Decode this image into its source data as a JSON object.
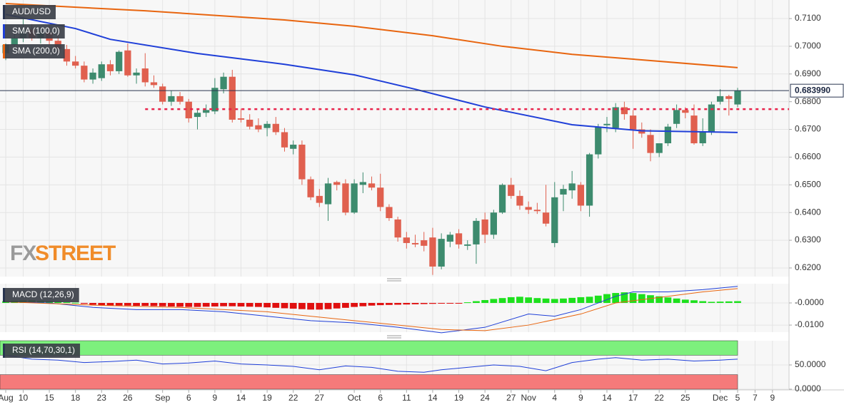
{
  "watermark": [
    "FX",
    "STREET"
  ],
  "chart_data": [
    {
      "type": "candlestick",
      "name": "AUD/USD",
      "up_color": "#3d8b6e",
      "down_color": "#e0604f",
      "ohlc": [
        [
          0.6975,
          0.701,
          0.695,
          0.7005
        ],
        [
          0.7005,
          0.7045,
          0.6985,
          0.703
        ],
        [
          0.703,
          0.71,
          0.7015,
          0.706
        ],
        [
          0.706,
          0.708,
          0.702,
          0.703
        ],
        [
          0.703,
          0.707,
          0.701,
          0.705
        ],
        [
          0.705,
          0.7075,
          0.7005,
          0.702
        ],
        [
          0.702,
          0.704,
          0.6975,
          0.699
        ],
        [
          0.699,
          0.7005,
          0.693,
          0.6945
        ],
        [
          0.6945,
          0.6965,
          0.692,
          0.693
        ],
        [
          0.693,
          0.6945,
          0.687,
          0.688
        ],
        [
          0.688,
          0.692,
          0.6865,
          0.6905
        ],
        [
          0.6885,
          0.6945,
          0.6875,
          0.6935
        ],
        [
          0.6935,
          0.695,
          0.6895,
          0.691
        ],
        [
          0.691,
          0.6985,
          0.69,
          0.698
        ],
        [
          0.6985,
          0.701,
          0.689,
          0.6895
        ],
        [
          0.6895,
          0.692,
          0.6865,
          0.6905
        ],
        [
          0.692,
          0.6975,
          0.6855,
          0.687
        ],
        [
          0.687,
          0.6895,
          0.685,
          0.686
        ],
        [
          0.6855,
          0.6865,
          0.679,
          0.68
        ],
        [
          0.68,
          0.684,
          0.6785,
          0.682
        ],
        [
          0.682,
          0.6835,
          0.679,
          0.68
        ],
        [
          0.68,
          0.681,
          0.6725,
          0.674
        ],
        [
          0.6745,
          0.6775,
          0.67,
          0.676
        ],
        [
          0.676,
          0.679,
          0.6745,
          0.677
        ],
        [
          0.6765,
          0.6885,
          0.6755,
          0.685
        ],
        [
          0.6845,
          0.6905,
          0.683,
          0.689
        ],
        [
          0.689,
          0.6915,
          0.6725,
          0.6735
        ],
        [
          0.674,
          0.6775,
          0.6725,
          0.6735
        ],
        [
          0.6735,
          0.6755,
          0.67,
          0.671
        ],
        [
          0.6715,
          0.674,
          0.669,
          0.67
        ],
        [
          0.6705,
          0.673,
          0.6675,
          0.672
        ],
        [
          0.672,
          0.6745,
          0.668,
          0.669
        ],
        [
          0.669,
          0.6705,
          0.662,
          0.6635
        ],
        [
          0.663,
          0.666,
          0.661,
          0.6645
        ],
        [
          0.6645,
          0.666,
          0.65,
          0.652
        ],
        [
          0.652,
          0.653,
          0.6445,
          0.6455
        ],
        [
          0.646,
          0.6485,
          0.642,
          0.6435
        ],
        [
          0.643,
          0.6525,
          0.637,
          0.6505
        ],
        [
          0.651,
          0.6515,
          0.648,
          0.65
        ],
        [
          0.6505,
          0.652,
          0.639,
          0.64
        ],
        [
          0.64,
          0.652,
          0.6395,
          0.6505
        ],
        [
          0.65,
          0.6545,
          0.647,
          0.651
        ],
        [
          0.6505,
          0.653,
          0.648,
          0.649
        ],
        [
          0.649,
          0.654,
          0.6405,
          0.642
        ],
        [
          0.642,
          0.643,
          0.637,
          0.638
        ],
        [
          0.6375,
          0.6385,
          0.6295,
          0.631
        ],
        [
          0.631,
          0.633,
          0.627,
          0.629
        ],
        [
          0.629,
          0.632,
          0.6275,
          0.6285
        ],
        [
          0.63,
          0.633,
          0.626,
          0.628
        ],
        [
          0.631,
          0.6345,
          0.6175,
          0.6205
        ],
        [
          0.6205,
          0.6325,
          0.6195,
          0.6305
        ],
        [
          0.6295,
          0.633,
          0.6275,
          0.632
        ],
        [
          0.6325,
          0.634,
          0.627,
          0.6285
        ],
        [
          0.628,
          0.63,
          0.6265,
          0.6285
        ],
        [
          0.6285,
          0.638,
          0.6215,
          0.637
        ],
        [
          0.6375,
          0.64,
          0.629,
          0.632
        ],
        [
          0.632,
          0.641,
          0.6305,
          0.64
        ],
        [
          0.64,
          0.6505,
          0.6395,
          0.65
        ],
        [
          0.65,
          0.6525,
          0.645,
          0.646
        ],
        [
          0.646,
          0.648,
          0.641,
          0.6425
        ],
        [
          0.642,
          0.644,
          0.6395,
          0.641
        ],
        [
          0.641,
          0.6435,
          0.6395,
          0.6405
        ],
        [
          0.64,
          0.65,
          0.635,
          0.636
        ],
        [
          0.629,
          0.651,
          0.6275,
          0.6455
        ],
        [
          0.6465,
          0.65,
          0.6405,
          0.6485
        ],
        [
          0.648,
          0.655,
          0.645,
          0.6505
        ],
        [
          0.65,
          0.651,
          0.6405,
          0.6425
        ],
        [
          0.6425,
          0.6615,
          0.6385,
          0.661
        ],
        [
          0.661,
          0.672,
          0.6595,
          0.671
        ],
        [
          0.6715,
          0.6745,
          0.669,
          0.672
        ],
        [
          0.6705,
          0.6795,
          0.669,
          0.678
        ],
        [
          0.678,
          0.68,
          0.6735,
          0.6755
        ],
        [
          0.675,
          0.677,
          0.663,
          0.67
        ],
        [
          0.67,
          0.6725,
          0.667,
          0.6685
        ],
        [
          0.668,
          0.67,
          0.6585,
          0.6615
        ],
        [
          0.6615,
          0.665,
          0.66,
          0.665
        ],
        [
          0.665,
          0.672,
          0.664,
          0.671
        ],
        [
          0.672,
          0.679,
          0.6705,
          0.677
        ],
        [
          0.677,
          0.678,
          0.674,
          0.676
        ],
        [
          0.675,
          0.679,
          0.6645,
          0.665
        ],
        [
          0.665,
          0.674,
          0.664,
          0.669
        ],
        [
          0.669,
          0.68,
          0.668,
          0.679
        ],
        [
          0.68,
          0.6845,
          0.679,
          0.682
        ],
        [
          0.682,
          0.6825,
          0.675,
          0.681
        ],
        [
          0.679,
          0.685,
          0.678,
          0.684
        ]
      ],
      "series": [
        {
          "name": "SMA (100,0)",
          "color": "#1f3fd8",
          "x": [
            0,
            8,
            12,
            22,
            32,
            40,
            47,
            55,
            65,
            73,
            84
          ],
          "values": [
            0.7115,
            0.7064,
            0.7025,
            0.6974,
            0.6935,
            0.6897,
            0.6845,
            0.6781,
            0.6717,
            0.6695,
            0.6689
          ]
        },
        {
          "name": "SMA (200,0)",
          "color": "#e8650f",
          "x": [
            0,
            16,
            32,
            40,
            49,
            57,
            65,
            73,
            84
          ],
          "values": [
            0.7154,
            0.7128,
            0.7095,
            0.7072,
            0.7038,
            0.7,
            0.6971,
            0.6951,
            0.6923
          ]
        }
      ],
      "last_price": {
        "value": 0.68399,
        "label": "0.683990"
      },
      "level": {
        "value": 0.6773,
        "from": 16,
        "color": "#e8224a"
      },
      "xlim": [
        -0.66,
        89.9
      ],
      "ylim": [
        0.6169,
        0.7167
      ],
      "xticks": [
        {
          "value": 0,
          "label": "Aug"
        },
        {
          "value": 2,
          "label": "10"
        },
        {
          "value": 5,
          "label": "15"
        },
        {
          "value": 8,
          "label": "18"
        },
        {
          "value": 11,
          "label": "23"
        },
        {
          "value": 14,
          "label": "26"
        },
        {
          "value": 18,
          "label": "Sep"
        },
        {
          "value": 21,
          "label": "6"
        },
        {
          "value": 24,
          "label": "9"
        },
        {
          "value": 27,
          "label": "14"
        },
        {
          "value": 30,
          "label": "19"
        },
        {
          "value": 33,
          "label": "22"
        },
        {
          "value": 36,
          "label": "27"
        },
        {
          "value": 40,
          "label": "Oct"
        },
        {
          "value": 43,
          "label": "6"
        },
        {
          "value": 46,
          "label": "11"
        },
        {
          "value": 49,
          "label": "14"
        },
        {
          "value": 52,
          "label": "19"
        },
        {
          "value": 55,
          "label": "24"
        },
        {
          "value": 58,
          "label": "27"
        },
        {
          "value": 60,
          "label": "Nov"
        },
        {
          "value": 63,
          "label": "4"
        },
        {
          "value": 66,
          "label": "9"
        },
        {
          "value": 69,
          "label": "14"
        },
        {
          "value": 72,
          "label": "17"
        },
        {
          "value": 75,
          "label": "22"
        },
        {
          "value": 78,
          "label": "25"
        },
        {
          "value": 82,
          "label": "Dec"
        },
        {
          "value": 84,
          "label": "5"
        },
        {
          "value": 86,
          "label": "7"
        },
        {
          "value": 88,
          "label": "9"
        }
      ],
      "yticks": [
        {
          "value": 0.71,
          "label": "0.7100"
        },
        {
          "value": 0.7,
          "label": "0.7000"
        },
        {
          "value": 0.69,
          "label": "0.6900"
        },
        {
          "value": 0.68,
          "label": "0.6800"
        },
        {
          "value": 0.67,
          "label": "0.6700"
        },
        {
          "value": 0.66,
          "label": "0.6600"
        },
        {
          "value": 0.65,
          "label": "0.6500"
        },
        {
          "value": 0.64,
          "label": "0.6400"
        },
        {
          "value": 0.63,
          "label": "0.6300"
        },
        {
          "value": 0.62,
          "label": "0.6200"
        }
      ],
      "grid": true
    },
    {
      "type": "macd",
      "name": "MACD (12,26,9)",
      "up_color": "#1de01d",
      "down_color": "#e01010",
      "histogram": [
        0.0008,
        0.001,
        0.0012,
        0.0012,
        0.001,
        0.0008,
        0.0006,
        0.0003,
        0.0001,
        -0.0004,
        -0.0008,
        -0.001,
        -0.0012,
        -0.0012,
        -0.0012,
        -0.0013,
        -0.0013,
        -0.0014,
        -0.0015,
        -0.0016,
        -0.0017,
        -0.0018,
        -0.0018,
        -0.0017,
        -0.0016,
        -0.0015,
        -0.0015,
        -0.0016,
        -0.0017,
        -0.0018,
        -0.002,
        -0.0022,
        -0.0024,
        -0.0026,
        -0.0028,
        -0.003,
        -0.003,
        -0.0028,
        -0.0025,
        -0.0022,
        -0.0018,
        -0.0015,
        -0.0012,
        -0.001,
        -0.0009,
        -0.0008,
        -0.0007,
        -0.0006,
        -0.0005,
        -0.0004,
        -0.0003,
        -0.0002,
        -0.0001,
        0.0003,
        0.0008,
        0.0013,
        0.0018,
        0.0022,
        0.0026,
        0.0028,
        0.0025,
        0.0022,
        0.002,
        0.0018,
        0.002,
        0.0023,
        0.0026,
        0.0028,
        0.0033,
        0.004,
        0.0045,
        0.0048,
        0.0045,
        0.004,
        0.0035,
        0.003,
        0.0025,
        0.002,
        0.0015,
        0.0012,
        0.0008,
        0.0005,
        0.0006,
        0.0007,
        0.0008
      ],
      "series": [
        {
          "color": "#1f3fd8",
          "x": [
            0,
            5,
            10,
            15,
            20,
            25,
            30,
            35,
            40,
            45,
            50,
            55,
            60,
            63,
            66,
            70,
            72,
            76,
            80,
            84
          ],
          "values": [
            0.0005,
            0,
            -0.002,
            -0.003,
            -0.003,
            -0.004,
            -0.006,
            -0.008,
            -0.009,
            -0.011,
            -0.0135,
            -0.011,
            -0.005,
            -0.006,
            -0.003,
            0.003,
            0.005,
            0.005,
            0.006,
            0.0075
          ]
        },
        {
          "color": "#e8650f",
          "x": [
            0,
            10,
            20,
            30,
            40,
            50,
            55,
            60,
            66,
            70,
            76,
            80,
            84
          ],
          "values": [
            0.0005,
            -0.001,
            -0.002,
            -0.004,
            -0.008,
            -0.012,
            -0.0125,
            -0.01,
            -0.005,
            0,
            0.003,
            0.005,
            0.0065
          ]
        }
      ],
      "ylim": [
        -0.0132,
        0.0087
      ],
      "yticks": [
        {
          "value": 0,
          "label": "-0.0000"
        },
        {
          "value": -0.01,
          "label": "-0.0100"
        }
      ]
    },
    {
      "type": "rsi",
      "name": "RSI (14,70,30,1)",
      "overbought": 70,
      "oversold": 30,
      "overbought_color": "#7df07d",
      "oversold_color": "#f57a7a",
      "series": [
        {
          "color": "#1f3fd8",
          "x": [
            0,
            3,
            6,
            9,
            12,
            15,
            18,
            21,
            24,
            27,
            30,
            33,
            36,
            39,
            42,
            45,
            48,
            50,
            53,
            56,
            59,
            62,
            65,
            68,
            70,
            73,
            76,
            79,
            82,
            84
          ],
          "values": [
            70,
            62,
            60,
            55,
            57,
            60,
            52,
            54,
            58,
            52,
            50,
            47,
            40,
            48,
            45,
            37,
            35,
            40,
            45,
            50,
            47,
            38,
            55,
            62,
            65,
            60,
            62,
            58,
            60,
            62
          ]
        }
      ],
      "ylim": [
        0,
        100
      ],
      "yticks": [
        {
          "value": 50,
          "label": "50.0000"
        },
        {
          "value": 0,
          "label": "0.0000"
        }
      ]
    }
  ]
}
